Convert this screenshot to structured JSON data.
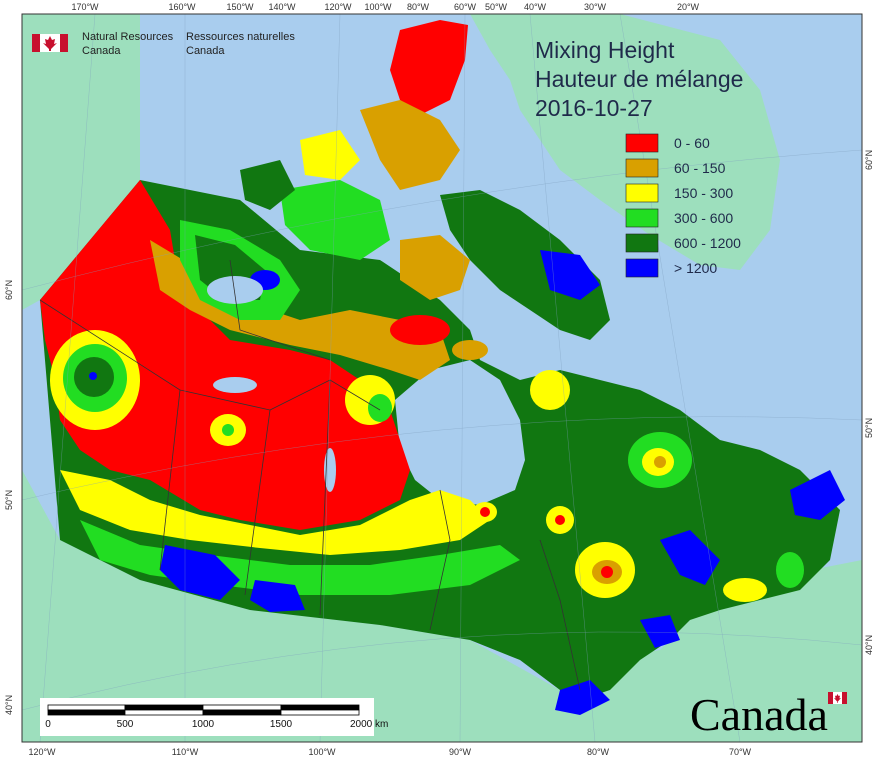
{
  "map": {
    "title_en": "Mixing Height",
    "title_fr": "Hauteur de mélange",
    "date": "2016-10-27"
  },
  "legend": [
    {
      "label": "0 - 60",
      "color": "#ff0000"
    },
    {
      "label": "60 - 150",
      "color": "#d9a000"
    },
    {
      "label": "150 - 300",
      "color": "#ffff00"
    },
    {
      "label": "300 - 600",
      "color": "#22dd22"
    },
    {
      "label": "600 - 1200",
      "color": "#117711"
    },
    {
      "label": "> 1200",
      "color": "#0000ff"
    }
  ],
  "org": {
    "en_line1": "Natural Resources",
    "en_line2": "Canada",
    "fr_line1": "Ressources naturelles",
    "fr_line2": "Canada"
  },
  "wordmark": "Canada",
  "scale_bar": {
    "labels": [
      "0",
      "500",
      "1000",
      "1500",
      "2000  km"
    ]
  },
  "graticule": {
    "top_labels": [
      "170°W",
      "160°W",
      "150°W",
      "140°W",
      "120°W",
      "100°W",
      "80°W",
      "60°W",
      "50°W",
      "40°W",
      "30°W",
      "20°W"
    ],
    "bottom_labels": [
      "120°W",
      "110°W",
      "100°W",
      "90°W",
      "80°W",
      "70°W"
    ],
    "left_labels": [
      "60°N",
      "50°N",
      "40°N"
    ],
    "right_labels": [
      "60°N",
      "50°N",
      "40°N"
    ]
  },
  "colors": {
    "ocean": "#a9cdee",
    "foreign_land": "#9ddfbd",
    "boundary": "#333333"
  }
}
